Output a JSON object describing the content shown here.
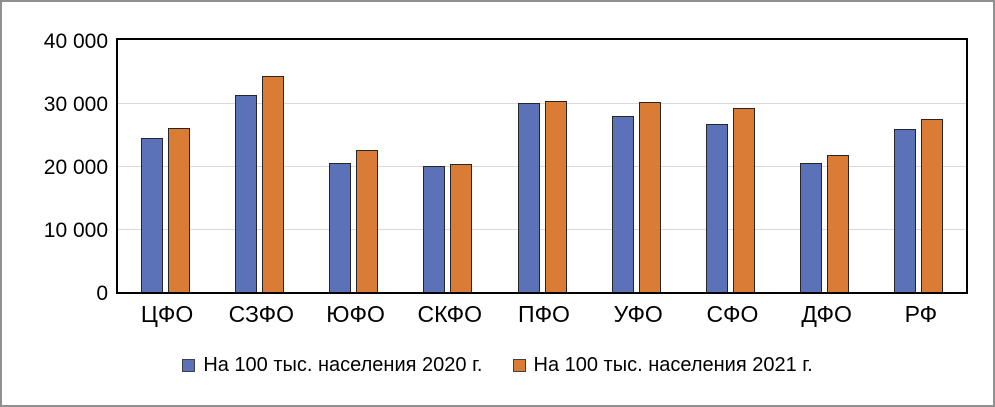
{
  "chart_data": {
    "type": "bar",
    "title": "",
    "categories": [
      "ЦФО",
      "СЗФО",
      "ЮФО",
      "СКФО",
      "ПФО",
      "УФО",
      "СФО",
      "ДФО",
      "РФ"
    ],
    "series": [
      {
        "name": "На 100 тыс. населения 2020 г.",
        "color": "#5B72B8",
        "values": [
          24500,
          31200,
          20500,
          20000,
          30000,
          28000,
          26600,
          20400,
          25900
        ]
      },
      {
        "name": "На 100 тыс. населения 2021 г.",
        "color": "#DA7C35",
        "values": [
          26000,
          34300,
          22600,
          20300,
          30300,
          30200,
          29200,
          21800,
          27500
        ]
      }
    ],
    "ylim": [
      0,
      40000
    ],
    "yticks": [
      {
        "value": 0,
        "label": "0"
      },
      {
        "value": 10000,
        "label": "10 000"
      },
      {
        "value": 20000,
        "label": "20 000"
      },
      {
        "value": 30000,
        "label": "30 000"
      },
      {
        "value": 40000,
        "label": "40 000"
      }
    ],
    "grid": "horizontal",
    "legend_position": "bottom",
    "colors": {
      "bar_border": "#262626",
      "gridline": "#D9D9D9",
      "axis_frame": "#000000",
      "text": "#000000",
      "outer_border": "#909090",
      "background": "#FFFFFF"
    }
  }
}
